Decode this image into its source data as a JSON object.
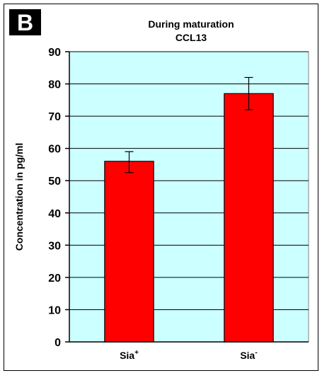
{
  "panel_label": "B",
  "chart_data": {
    "type": "bar",
    "title": "During maturation",
    "subtitle": "CCL13",
    "ylabel": "Concentration in pg/ml",
    "xlabel": "",
    "ylim": [
      0,
      90
    ],
    "yticks": [
      0,
      10,
      20,
      30,
      40,
      50,
      60,
      70,
      80,
      90
    ],
    "ytick_labels": [
      "0",
      "10",
      "20",
      "30",
      "40",
      "50",
      "60",
      "70",
      "80",
      "90"
    ],
    "grid": true,
    "legend": "none",
    "categories": [
      {
        "base": "Sia",
        "sup": "+"
      },
      {
        "base": "Sia",
        "sup": "-"
      }
    ],
    "values": [
      56,
      77
    ],
    "error_low": [
      52.5,
      72
    ],
    "error_high": [
      59,
      82
    ],
    "bar_color": "#ff0000",
    "plot_background": "#ccffff"
  }
}
